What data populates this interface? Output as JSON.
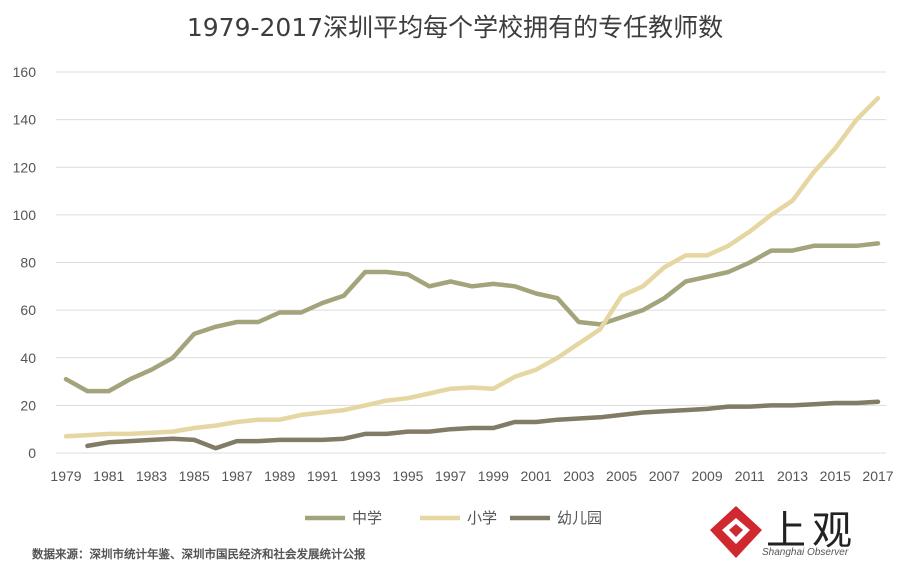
{
  "chart_data": {
    "type": "line",
    "title": "1979-2017深圳平均每个学校拥有的专任教师数",
    "x": [
      1979,
      1980,
      1981,
      1982,
      1983,
      1984,
      1985,
      1986,
      1987,
      1988,
      1989,
      1990,
      1991,
      1992,
      1993,
      1994,
      1995,
      1996,
      1997,
      1998,
      1999,
      2000,
      2001,
      2002,
      2003,
      2004,
      2005,
      2006,
      2007,
      2008,
      2009,
      2010,
      2011,
      2012,
      2013,
      2014,
      2015,
      2016,
      2017
    ],
    "x_tick_labels": [
      "1979",
      "1981",
      "1983",
      "1985",
      "1987",
      "1989",
      "1991",
      "1993",
      "1995",
      "1997",
      "1999",
      "2001",
      "2003",
      "2005",
      "2007",
      "2009",
      "2011",
      "2013",
      "2015",
      "2017"
    ],
    "ylim": [
      0,
      160
    ],
    "y_ticks": [
      0,
      20,
      40,
      60,
      80,
      100,
      120,
      140,
      160
    ],
    "grid": true,
    "legend_position": "bottom",
    "series": [
      {
        "name": "中学",
        "color": "#a4a47c",
        "values": [
          31,
          26,
          26,
          31,
          35,
          40,
          50,
          53,
          55,
          55,
          59,
          59,
          63,
          66,
          76,
          76,
          75,
          70,
          72,
          70,
          71,
          70,
          67,
          65,
          55,
          54,
          57,
          60,
          65,
          72,
          74,
          76,
          80,
          85,
          85,
          87,
          87,
          87,
          88
        ]
      },
      {
        "name": "小学",
        "color": "#e6d6a2",
        "values": [
          7,
          7.5,
          8,
          8,
          8.5,
          9,
          10.5,
          11.5,
          13,
          14,
          14,
          16,
          17,
          18,
          20,
          22,
          23,
          25,
          27,
          27.5,
          27,
          32,
          35,
          40,
          46,
          52,
          66,
          70,
          78,
          83,
          83,
          87,
          93,
          100,
          106,
          118,
          128,
          140,
          149
        ]
      },
      {
        "name": "幼儿园",
        "color": "#827b66",
        "values": [
          null,
          3,
          4.5,
          5,
          5.5,
          6,
          5.5,
          2,
          5,
          5,
          5.5,
          5.5,
          5.5,
          6,
          8,
          8,
          9,
          9,
          10,
          10.5,
          10.5,
          13,
          13,
          14,
          14.5,
          15,
          16,
          17,
          17.5,
          18,
          18.5,
          19.5,
          19.5,
          20,
          20,
          20.5,
          21,
          21,
          21.5
        ]
      }
    ]
  },
  "source_note": "数据来源：深圳市统计年鉴、深圳市国民经济和社会发展统计公报",
  "logo": {
    "cn": "上观",
    "en": "Shanghai Observer",
    "colors": {
      "red": "#d0282f"
    }
  }
}
